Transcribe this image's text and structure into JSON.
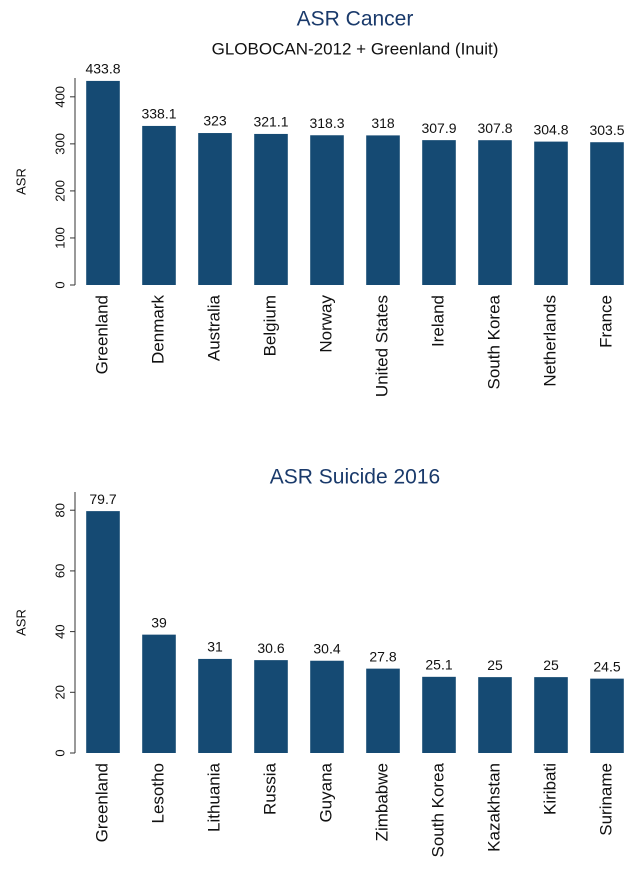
{
  "chart_data": [
    {
      "type": "bar",
      "title": "ASR Cancer",
      "subtitle": "GLOBOCAN-2012 + Greenland (Inuit)",
      "y_label": "ASR",
      "categories": [
        "Greenland",
        "Denmark",
        "Australia",
        "Belgium",
        "Norway",
        "United States",
        "Ireland",
        "South Korea",
        "Netherlands",
        "France"
      ],
      "values": [
        433.8,
        338.1,
        323,
        321.1,
        318.3,
        318,
        307.9,
        307.8,
        304.8,
        303.5
      ],
      "color": "#154a73",
      "ylim": [
        0,
        440
      ],
      "yticks": [
        0,
        100,
        200,
        300,
        400
      ]
    },
    {
      "type": "bar",
      "title": "ASR Suicide 2016",
      "y_label": "ASR",
      "categories": [
        "Greenland",
        "Lesotho",
        "Lithuania",
        "Russia",
        "Guyana",
        "Zimbabwe",
        "South Korea",
        "Kazakhstan",
        "Kiribati",
        "Suriname"
      ],
      "values": [
        79.7,
        39,
        31,
        30.6,
        30.4,
        27.8,
        25.1,
        25,
        25,
        24.5
      ],
      "color": "#154a73",
      "ylim": [
        0,
        86
      ],
      "yticks": [
        0,
        20,
        40,
        60,
        80
      ]
    }
  ]
}
